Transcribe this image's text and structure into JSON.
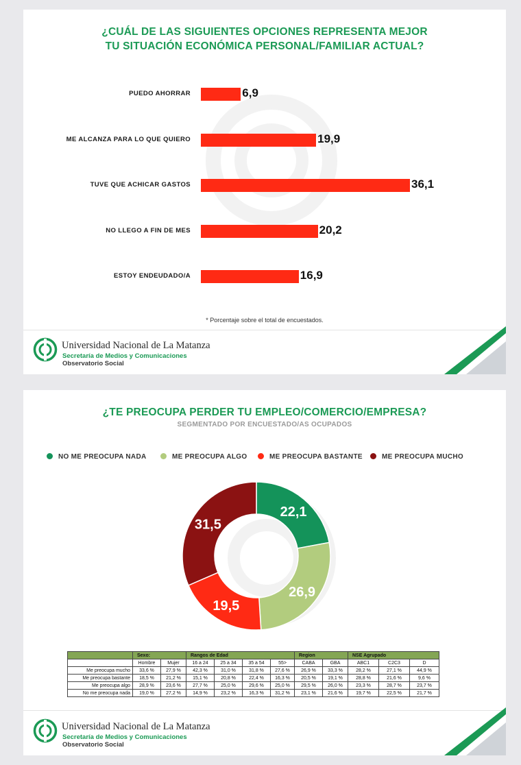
{
  "colors": {
    "bar": "#ff2a14",
    "title": "#1b9a55",
    "donut": [
      "#14935a",
      "#b2cc7e",
      "#ff2a14",
      "#8b1212"
    ],
    "table_header": "#84a654"
  },
  "slide1": {
    "title_line1": "¿CUÁL DE LAS SIGUIENTES OPCIONES REPRESENTA MEJOR",
    "title_line2": "TU SITUACIÓN ECONÓMICA PERSONAL/FAMILIAR ACTUAL?",
    "footnote": "* Porcentaje sobre el total de encuestados."
  },
  "slide2": {
    "title": "¿TE PREOCUPA PERDER TU EMPLEO/COMERCIO/EMPRESA?",
    "subtitle": "SEGMENTADO POR ENCUESTADO/AS OCUPADOS",
    "legend": [
      {
        "label": "NO ME PREOCUPA NADA",
        "color": "#14935a"
      },
      {
        "label": "ME PREOCUPA ALGO",
        "color": "#b2cc7e"
      },
      {
        "label": "ME PREOCUPA BASTANTE",
        "color": "#ff2a14"
      },
      {
        "label": "ME PREOCUPA MUCHO",
        "color": "#8b1212"
      }
    ],
    "table": {
      "groups": [
        "Sexo:",
        "Rangos de Edad",
        "Region",
        "NSE Agrupado"
      ],
      "columns": [
        "Hombre",
        "Mujer",
        "16 a 24",
        "25 a 34",
        "35 a 54",
        "55>",
        "CABA",
        "GBA",
        "ABC1",
        "C2C3",
        "D"
      ],
      "rows": [
        {
          "label": "Me preocupa mucho",
          "values": [
            "33,6 %",
            "27,9 %",
            "42,3 %",
            "31,0 %",
            "31,8 %",
            "27,6 %",
            "26,9 %",
            "33,3 %",
            "28,2 %",
            "27,1 %",
            "44,9 %"
          ]
        },
        {
          "label": "Me preocupa bastante",
          "values": [
            "18,5 %",
            "21,2 %",
            "15,1 %",
            "20,8 %",
            "22,4 %",
            "16,3 %",
            "20,5 %",
            "19,1 %",
            "28,8 %",
            "21,6 %",
            "9,6 %"
          ]
        },
        {
          "label": "Me preocupa algo",
          "values": [
            "28,9 %",
            "23,6 %",
            "27,7 %",
            "25,0 %",
            "29,6 %",
            "25,0 %",
            "29,5 %",
            "26,0 %",
            "23,3 %",
            "28,7 %",
            "23,7 %"
          ]
        },
        {
          "label": "No me preocupa nada",
          "values": [
            "19,0 %",
            "27,2 %",
            "14,9 %",
            "23,2 %",
            "16,3 %",
            "31,2 %",
            "23,1 %",
            "21,6 %",
            "19,7 %",
            "22,5 %",
            "21,7 %"
          ]
        }
      ]
    }
  },
  "footer": {
    "university": "Universidad Nacional de La Matanza",
    "secretaria": "Secretaría de Medios y Comunicaciones",
    "observatorio": "Observatorio Social"
  },
  "chart_data": [
    {
      "type": "bar",
      "title": "¿CUÁL DE LAS SIGUIENTES OPCIONES REPRESENTA MEJOR TU SITUACIÓN ECONÓMICA PERSONAL/FAMILIAR ACTUAL?",
      "categories": [
        "PUEDO AHORRAR",
        "ME ALCANZA PARA LO QUE QUIERO",
        "TUVE QUE ACHICAR GASTOS",
        "NO LLEGO A FIN DE MES",
        "ESTOY ENDEUDADO/A"
      ],
      "values": [
        6.9,
        19.9,
        36.1,
        20.2,
        16.9
      ],
      "value_labels": [
        "6,9",
        "19,9",
        "36,1",
        "20,2",
        "16,9"
      ],
      "orientation": "horizontal",
      "grid": false
    },
    {
      "type": "pie",
      "donut": true,
      "title": "¿TE PREOCUPA PERDER TU EMPLEO/COMERCIO/EMPRESA?",
      "subtitle": "SEGMENTADO POR ENCUESTADO/AS OCUPADOS",
      "categories": [
        "NO ME PREOCUPA NADA",
        "ME PREOCUPA ALGO",
        "ME PREOCUPA BASTANTE",
        "ME PREOCUPA MUCHO"
      ],
      "values": [
        22.1,
        26.9,
        19.5,
        31.5
      ],
      "value_labels": [
        "22,1",
        "26,9",
        "19,5",
        "31,5"
      ],
      "legend": "top"
    }
  ]
}
